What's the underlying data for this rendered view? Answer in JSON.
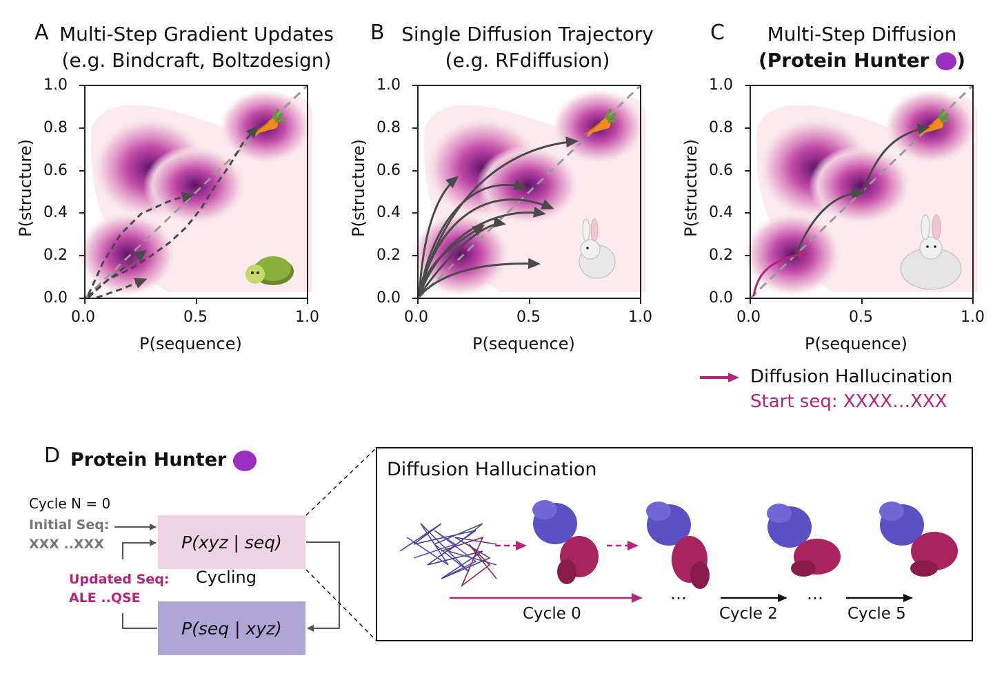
{
  "panels": [
    {
      "letter": "A",
      "title_line1": "Multi-Step Gradient Updates",
      "title_line2": "(e.g. Bindcraft, Boltzdesign)",
      "mascot": "turtle-icon"
    },
    {
      "letter": "B",
      "title_line1": "Single Diffusion Trajectory",
      "title_line2": "(e.g. RFdiffusion)",
      "mascot": "rabbit-icon"
    },
    {
      "letter": "C",
      "title_line1": "Multi-Step Diffusion",
      "title_line2_bold": "(Protein Hunter",
      "title_line2_end": ")",
      "mascot": "muscular-rabbit-icon"
    }
  ],
  "axes": {
    "xlabel": "P(sequence)",
    "ylabel": "P(structure)",
    "xticks": [
      "0.0",
      "0.5",
      "1.0"
    ],
    "yticks": [
      "0.0",
      "0.2",
      "0.4",
      "0.6",
      "0.8",
      "1.0"
    ]
  },
  "legend": {
    "label": "Diffusion Hallucination",
    "start_seq": "Start seq: XXXX…XXX"
  },
  "panel_d": {
    "letter": "D",
    "title": "Protein Hunter",
    "cycle_n": "Cycle N = 0",
    "initial_seq_label": "Initial Seq:",
    "initial_seq_value": "XXX ..XXX",
    "updated_seq_label": "Updated Seq:",
    "updated_seq_value": "ALE ..QSE",
    "cycling": "Cycling",
    "box_top": "P(xyz | seq)",
    "box_bottom": "P(seq | xyz)"
  },
  "hallucination_box": {
    "title": "Diffusion Hallucination",
    "cycle0": "Cycle 0",
    "cycle2": "Cycle 2",
    "cycle5": "Cycle 5",
    "ellipsis1": "…",
    "ellipsis2": "…"
  },
  "colors": {
    "magenta": "#b5257a",
    "arrow_gray": "#4a4a4a",
    "box_pink": "#efd3e2",
    "box_purple": "#b0a6d6",
    "protein_blue": "#5a52c4",
    "protein_red": "#a8245e"
  }
}
